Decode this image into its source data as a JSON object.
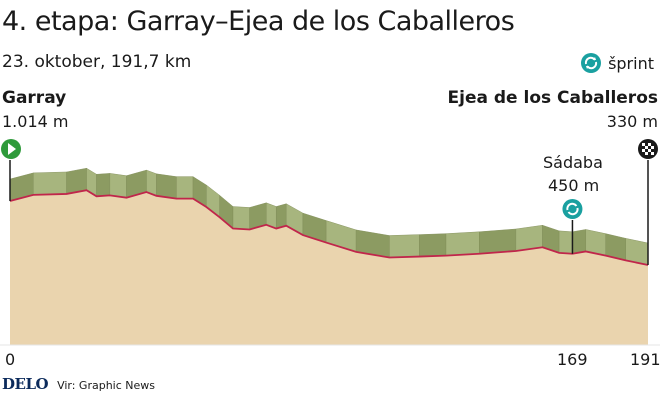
{
  "header": {
    "title": "4. etapa: Garray–Ejea de los Caballeros",
    "subtitle": "23. oktober, 191,7 km"
  },
  "legend": {
    "sprint_label": "šprint",
    "sprint_icon": "sprint-icon"
  },
  "start": {
    "name": "Garray",
    "elevation": "1.014 m",
    "km": "0",
    "icon": "start-flag-icon",
    "color": "#2e9a3a"
  },
  "finish": {
    "name": "Ejea de los Caballeros",
    "elevation": "330 m",
    "km": "191",
    "icon": "checkered-flag-icon"
  },
  "sprint": {
    "name": "Sádaba",
    "elevation": "450 m",
    "km": "169",
    "color": "#1aa0a0"
  },
  "footer": {
    "logo": "DELO",
    "credit": "Vir: Graphic News"
  },
  "colors": {
    "profile_fill": "#ead4ae",
    "profile_top": "#a7b57e",
    "profile_side": "#8c9b62",
    "route_line": "#c0264b"
  },
  "chart_data": {
    "type": "area",
    "x_unit": "km",
    "xlim": [
      0,
      191.7
    ],
    "x": [
      0,
      7,
      17,
      23,
      26,
      30,
      35,
      41,
      44,
      50,
      55,
      59,
      63,
      67,
      72,
      77,
      80,
      83,
      88,
      95,
      104,
      114,
      123,
      131,
      141,
      152,
      160,
      165,
      169,
      173,
      179,
      185,
      191.7
    ],
    "elevation": [
      1014,
      1080,
      1090,
      1130,
      1065,
      1075,
      1050,
      1110,
      1070,
      1040,
      1040,
      950,
      840,
      720,
      710,
      760,
      720,
      750,
      650,
      570,
      470,
      410,
      420,
      430,
      450,
      480,
      520,
      460,
      450,
      475,
      430,
      380,
      330
    ]
  }
}
